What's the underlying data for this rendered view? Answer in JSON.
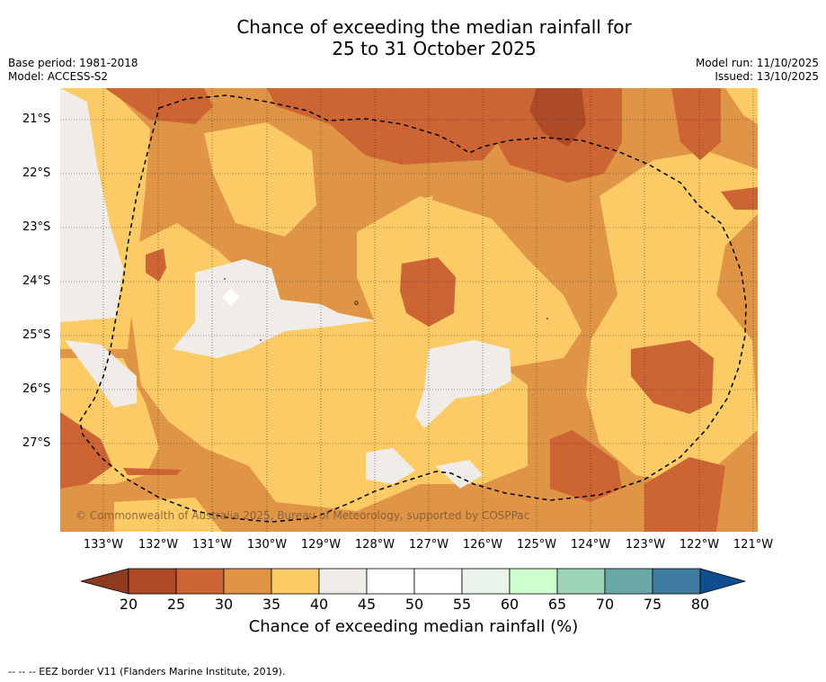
{
  "title": {
    "line1": "Chance of exceeding the median rainfall for",
    "line2": "25 to 31 October 2025"
  },
  "meta_left": {
    "base_period": "Base period: 1981-2018",
    "model": "Model: ACCESS-S2"
  },
  "meta_right": {
    "model_run": "Model run: 11/10/2025",
    "issued": "Issued: 13/10/2025"
  },
  "map": {
    "latitude_labels": [
      "21°S",
      "22°S",
      "23°S",
      "24°S",
      "25°S",
      "26°S",
      "27°S"
    ],
    "longitude_labels": [
      "133°W",
      "132°W",
      "131°W",
      "130°W",
      "129°W",
      "128°W",
      "127°W",
      "126°W",
      "125°W",
      "124°W",
      "123°W",
      "122°W",
      "121°W"
    ],
    "copyright": "© Commonwealth of Australia 2025, Bureau of Meteorology, supported by COSPPac",
    "palette": {
      "p20_25": "#ad4a27",
      "p25_30": "#cd6434",
      "p30_35": "#e09445",
      "p35_40": "#fccb65",
      "p40_45": "#f0ede8",
      "boundary": "#000000"
    }
  },
  "colorbar": {
    "tick_labels": [
      "20",
      "25",
      "30",
      "35",
      "40",
      "45",
      "50",
      "55",
      "60",
      "65",
      "70",
      "75",
      "80"
    ],
    "colors": [
      "#ad4a27",
      "#cd6434",
      "#e09445",
      "#fccb65",
      "#f0ede8",
      "#ffffff",
      "#ffffff",
      "#eaf4ea",
      "#ccffcc",
      "#9bd3b9",
      "#6aa8a8",
      "#3f7aa0"
    ],
    "under_color": "#8d3a1f",
    "over_color": "#0f4f8f",
    "title": "Chance of exceeding median rainfall (%)"
  },
  "footnote": "-- -- -- EEZ border V11 (Flanders Marine Institute, 2019)."
}
